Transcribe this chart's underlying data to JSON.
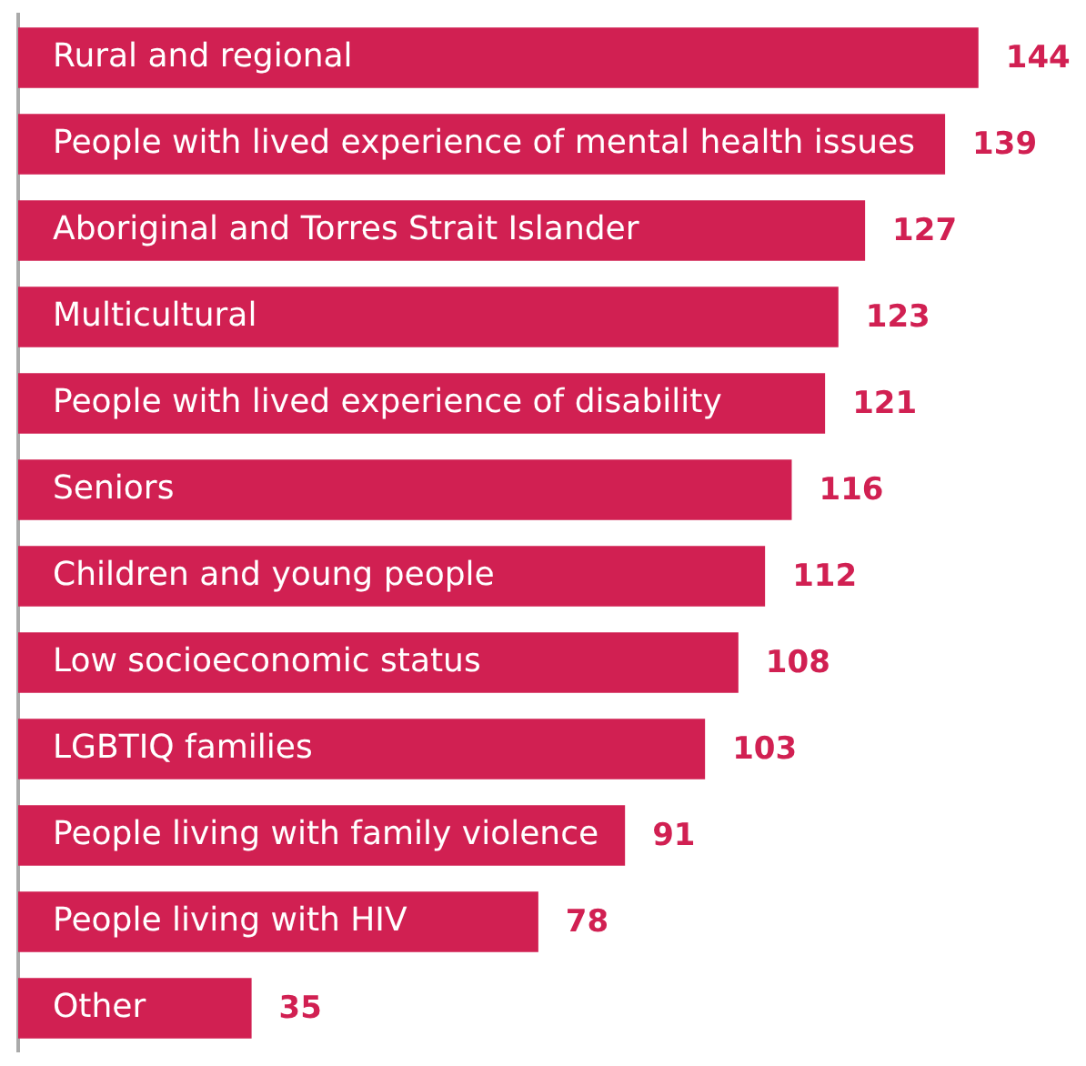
{
  "chart_data": {
    "type": "bar",
    "orientation": "horizontal",
    "data_labels": true,
    "grid": false,
    "legend": false,
    "color": "#d12052",
    "categories": [
      "Rural and regional",
      "People with lived experience of mental health issues",
      "Aboriginal and Torres Strait Islander",
      "Multicultural",
      "People with lived experience of disability",
      "Seniors",
      "Children and young people",
      "Low socioeconomic status",
      "LGBTIQ families",
      "People living with family violence",
      "People living with HIV",
      "Other"
    ],
    "values": [
      144,
      139,
      127,
      123,
      121,
      116,
      112,
      108,
      103,
      91,
      78,
      35
    ]
  }
}
